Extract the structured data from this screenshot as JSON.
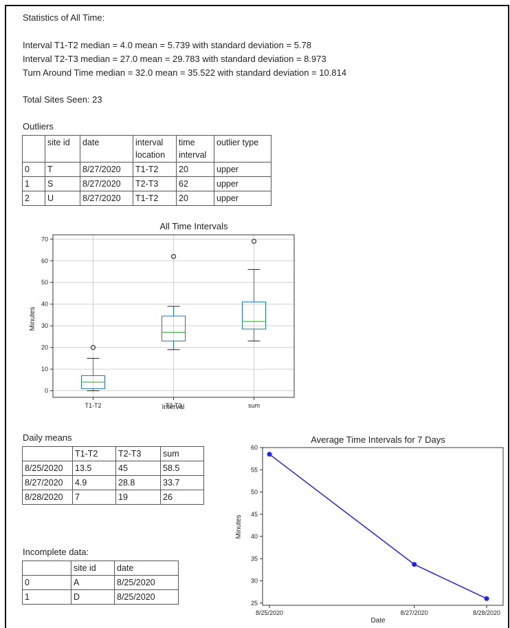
{
  "heading": "Statistics of All Time:",
  "stats": [
    "Interval T1-T2  median = 4.0  mean = 5.739 with standard deviation = 5.78",
    "Interval T2-T3  median = 27.0  mean = 29.783 with standard deviation = 8.973",
    "Turn Around Time  median = 32.0  mean = 35.522 with standard deviation = 10.814"
  ],
  "total_sites": "Total Sites Seen:  23",
  "outliers": {
    "title": "Outliers",
    "headers": [
      "",
      "site id",
      "date",
      "interval location",
      "time interval",
      "outlier type"
    ],
    "rows": [
      [
        "0",
        "T",
        "8/27/2020",
        "T1-T2",
        "20",
        "upper"
      ],
      [
        "1",
        "S",
        "8/27/2020",
        "T2-T3",
        "62",
        "upper"
      ],
      [
        "2",
        "U",
        "8/27/2020",
        "T1-T2",
        "20",
        "upper"
      ]
    ]
  },
  "daily_means": {
    "title": "Daily means",
    "headers": [
      "",
      "T1-T2",
      "T2-T3",
      "sum"
    ],
    "rows": [
      [
        "8/25/2020",
        "13.5",
        "45",
        "58.5"
      ],
      [
        "8/27/2020",
        "4.9",
        "28.8",
        "33.7"
      ],
      [
        "8/28/2020",
        "7",
        "19",
        "26"
      ]
    ]
  },
  "incomplete": {
    "title": "Incomplete data:",
    "headers": [
      "",
      "site id",
      "date"
    ],
    "rows": [
      [
        "0",
        "A",
        "8/25/2020"
      ],
      [
        "1",
        "D",
        "8/25/2020"
      ]
    ]
  },
  "colors": {
    "box": "#1f77b4",
    "median": "#2ca02c",
    "line": "#2020ff",
    "grid": "#d0d0d0"
  },
  "chart_data": [
    {
      "type": "box",
      "title": "All Time Intervals",
      "xlabel": "Interval",
      "ylabel": "Minutes",
      "categories": [
        "T1-T2",
        "T2-T3",
        "sum"
      ],
      "boxes": [
        {
          "whisker_low": 0,
          "q1": 1,
          "median": 4,
          "q3": 7,
          "whisker_high": 15,
          "outliers": [
            20
          ]
        },
        {
          "whisker_low": 19,
          "q1": 23,
          "median": 27,
          "q3": 34.5,
          "whisker_high": 39,
          "outliers": [
            62
          ]
        },
        {
          "whisker_low": 23,
          "q1": 28.5,
          "median": 32,
          "q3": 41,
          "whisker_high": 56,
          "outliers": [
            69
          ]
        }
      ],
      "yticks": [
        0,
        10,
        20,
        30,
        40,
        50,
        60,
        70
      ],
      "ylim": [
        -3,
        72
      ],
      "grid": true
    },
    {
      "type": "line",
      "title": "Average Time Intervals for 7 Days",
      "xlabel": "Date",
      "ylabel": "Minutes",
      "x": [
        "8/25/2020",
        "8/27/2020",
        "8/28/2020"
      ],
      "x_day": [
        25,
        27,
        28
      ],
      "series": [
        {
          "values": [
            58.5,
            33.7,
            26
          ]
        }
      ],
      "yticks": [
        25,
        30,
        35,
        40,
        45,
        50,
        55,
        60
      ],
      "ylim": [
        24.5,
        60
      ],
      "grid": false
    }
  ]
}
